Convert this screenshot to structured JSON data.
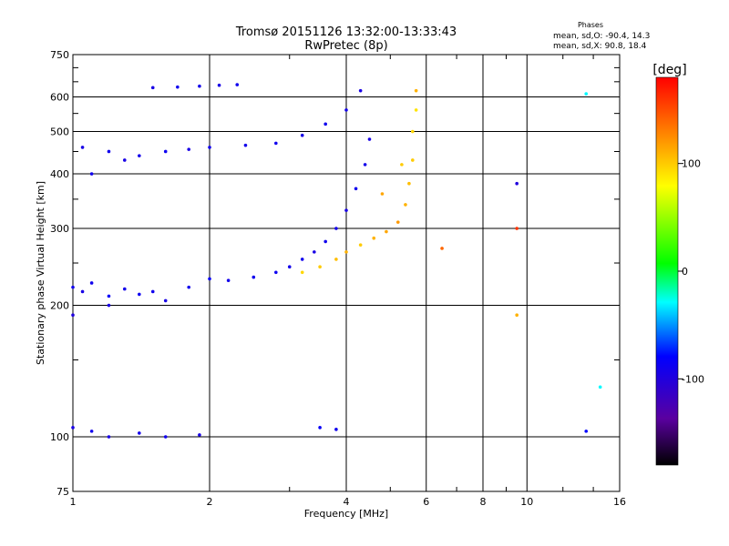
{
  "title_line1": "Tromsø 20151126 13:32:00-13:33:43",
  "title_line2": "RwPretec (8p)",
  "phase_info": {
    "heading": "Phases",
    "o_line": "mean, sd,O: -90.4, 14.3",
    "x_line": "mean, sd,X:  90.8, 18.4"
  },
  "colorbar": {
    "label": "[deg]",
    "ticks": [
      {
        "value": 100,
        "label": "100"
      },
      {
        "value": 0,
        "label": "0"
      },
      {
        "value": -100,
        "label": "-100"
      }
    ],
    "range": [
      -180,
      180
    ]
  },
  "chart_data": {
    "type": "scatter",
    "xlabel": "Frequency [MHz]",
    "ylabel": "Stationary phase Virtual Height [km]",
    "x_scale": "log",
    "y_scale": "log",
    "xlim": [
      1,
      16
    ],
    "ylim": [
      75,
      750
    ],
    "x_ticks": [
      {
        "v": 1,
        "label": "1"
      },
      {
        "v": 2,
        "label": "2"
      },
      {
        "v": 4,
        "label": "4"
      },
      {
        "v": 6,
        "label": "6"
      },
      {
        "v": 8,
        "label": "8"
      },
      {
        "v": 10,
        "label": "10"
      },
      {
        "v": 16,
        "label": "16"
      }
    ],
    "x_grid": [
      2,
      4,
      6,
      8,
      10
    ],
    "y_ticks": [
      {
        "v": 75,
        "label": "75"
      },
      {
        "v": 100,
        "label": "100"
      },
      {
        "v": 200,
        "label": "200"
      },
      {
        "v": 300,
        "label": "300"
      },
      {
        "v": 400,
        "label": "400"
      },
      {
        "v": 500,
        "label": "500"
      },
      {
        "v": 600,
        "label": "600"
      },
      {
        "v": 750,
        "label": "750"
      }
    ],
    "y_grid": [
      100,
      200,
      300,
      400,
      500,
      600
    ],
    "grid": true,
    "series": [
      {
        "points": [
          [
            1.0,
            220,
            -90
          ],
          [
            1.05,
            215,
            -95
          ],
          [
            1.1,
            225,
            -90
          ],
          [
            1.2,
            210,
            -85
          ],
          [
            1.3,
            218,
            -92
          ],
          [
            1.4,
            212,
            -88
          ],
          [
            1.5,
            215,
            -90
          ],
          [
            1.6,
            205,
            -95
          ],
          [
            1.8,
            220,
            -90
          ],
          [
            2.0,
            230,
            -85
          ],
          [
            2.2,
            228,
            -92
          ],
          [
            2.5,
            232,
            -90
          ],
          [
            2.8,
            238,
            -88
          ],
          [
            3.0,
            245,
            -92
          ],
          [
            3.2,
            255,
            -90
          ],
          [
            3.4,
            265,
            -95
          ],
          [
            3.6,
            280,
            -90
          ],
          [
            3.8,
            300,
            -92
          ],
          [
            4.0,
            330,
            -95
          ],
          [
            4.2,
            370,
            -90
          ],
          [
            4.4,
            420,
            -92
          ],
          [
            4.5,
            480,
            -95
          ],
          [
            1.0,
            190,
            -100
          ],
          [
            1.2,
            200,
            -95
          ]
        ]
      },
      {
        "points": [
          [
            3.2,
            238,
            95
          ],
          [
            3.5,
            245,
            100
          ],
          [
            3.8,
            255,
            105
          ],
          [
            4.0,
            265,
            110
          ],
          [
            4.3,
            275,
            100
          ],
          [
            4.6,
            285,
            110
          ],
          [
            4.9,
            295,
            115
          ],
          [
            5.2,
            310,
            120
          ],
          [
            5.4,
            340,
            110
          ],
          [
            5.5,
            380,
            105
          ],
          [
            5.6,
            430,
            100
          ],
          [
            5.6,
            500,
            95
          ],
          [
            5.7,
            560,
            90
          ],
          [
            5.7,
            620,
            110
          ],
          [
            5.3,
            420,
            100
          ],
          [
            4.8,
            360,
            115
          ]
        ]
      },
      {
        "points": [
          [
            1.05,
            460,
            -95
          ],
          [
            1.2,
            450,
            -90
          ],
          [
            1.4,
            440,
            -92
          ],
          [
            1.6,
            450,
            -88
          ],
          [
            1.8,
            455,
            -95
          ],
          [
            2.0,
            460,
            -90
          ],
          [
            2.4,
            465,
            -92
          ],
          [
            2.8,
            470,
            -90
          ],
          [
            3.2,
            490,
            -95
          ],
          [
            3.6,
            520,
            -90
          ],
          [
            4.0,
            560,
            -92
          ],
          [
            4.3,
            620,
            -95
          ],
          [
            1.1,
            400,
            -90
          ],
          [
            1.3,
            430,
            -95
          ]
        ]
      },
      {
        "points": [
          [
            1.5,
            630,
            -95
          ],
          [
            1.7,
            632,
            -90
          ],
          [
            1.9,
            635,
            -92
          ],
          [
            2.1,
            638,
            -95
          ],
          [
            2.3,
            640,
            -90
          ]
        ]
      },
      {
        "points": [
          [
            1.0,
            105,
            -95
          ],
          [
            1.1,
            103,
            -90
          ],
          [
            1.2,
            100,
            -95
          ],
          [
            1.4,
            102,
            -92
          ],
          [
            1.6,
            100,
            -90
          ],
          [
            1.9,
            101,
            -95
          ],
          [
            3.5,
            105,
            -85
          ],
          [
            3.8,
            104,
            -90
          ]
        ]
      },
      {
        "points": [
          [
            6.5,
            270,
            140
          ],
          [
            9.5,
            300,
            160
          ],
          [
            9.5,
            190,
            110
          ],
          [
            9.5,
            380,
            -100
          ],
          [
            13.5,
            610,
            -30
          ],
          [
            14.5,
            130,
            -30
          ],
          [
            13.5,
            103,
            -80
          ]
        ]
      }
    ]
  }
}
